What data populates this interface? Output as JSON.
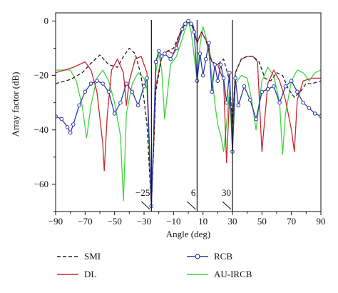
{
  "chart_data": {
    "type": "line",
    "xlabel": "Angle (deg)",
    "ylabel": "Array factor (dB)",
    "xlim": [
      -90,
      90
    ],
    "ylim": [
      -70,
      3
    ],
    "xticks": [
      -90,
      -70,
      -50,
      -30,
      -10,
      10,
      30,
      50,
      70,
      90
    ],
    "yticks": [
      0,
      -20,
      -40,
      -60
    ],
    "grid": false,
    "legend_position": "bottom",
    "annotations": [
      {
        "x": -25,
        "label": "−25"
      },
      {
        "x": 6,
        "label": "6"
      },
      {
        "x": 30,
        "label": "30"
      }
    ],
    "series": [
      {
        "name": "SMI",
        "color": "#222222",
        "style": "dashed",
        "x": [
          -90,
          -80,
          -72,
          -66,
          -60,
          -54,
          -48,
          -44,
          -40,
          -36,
          -32,
          -28,
          -25,
          -22,
          -18,
          -14,
          -10,
          -6,
          -3,
          0,
          3,
          6,
          9,
          12,
          16,
          20,
          24,
          28,
          30,
          32,
          36,
          40,
          44,
          48,
          52,
          56,
          60,
          64,
          68,
          72,
          76,
          80,
          84,
          90
        ],
        "y": [
          -23,
          -21.5,
          -19,
          -15.5,
          -12.5,
          -16,
          -17,
          -13,
          -10,
          -12,
          -20,
          -38,
          -68,
          -26,
          -13,
          -11,
          -10,
          -5,
          -1.5,
          0,
          -1.5,
          -8,
          -4,
          -7,
          -15,
          -16,
          -14,
          -22,
          -38,
          -19,
          -14,
          -13,
          -13,
          -15,
          -21,
          -22,
          -19,
          -20,
          -25,
          -28,
          -26,
          -23,
          -23,
          -22
        ]
      },
      {
        "name": "DL",
        "color": "#c8282c",
        "style": "solid",
        "x": [
          -90,
          -84,
          -78,
          -74,
          -70,
          -66,
          -62,
          -58,
          -57,
          -55,
          -52,
          -48,
          -44,
          -42,
          -40,
          -36,
          -32,
          -28,
          -25,
          -22,
          -18,
          -14,
          -10,
          -6,
          -3,
          0,
          3,
          6,
          9,
          12,
          16,
          20,
          24,
          26,
          28,
          30,
          32,
          36,
          40,
          44,
          47,
          50,
          54,
          58,
          62,
          66,
          70,
          72,
          74,
          78,
          84,
          90
        ],
        "y": [
          -19,
          -18,
          -17,
          -16,
          -15,
          -18,
          -26,
          -45,
          -55,
          -35,
          -18,
          -14,
          -19,
          -31,
          -22,
          -14,
          -13,
          -19,
          -68,
          -24,
          -13,
          -11,
          -12,
          -5,
          -1,
          0,
          -1,
          -8,
          -4,
          -7,
          -15,
          -16,
          -22,
          -52,
          -28,
          -38,
          -19,
          -14,
          -13,
          -13,
          -15,
          -48,
          -23,
          -18,
          -22,
          -29,
          -40,
          -48,
          -29,
          -22,
          -21,
          -21
        ]
      },
      {
        "name": "RCB",
        "color": "#2a3aa8",
        "style": "marker",
        "x": [
          -90,
          -86,
          -82,
          -80,
          -78,
          -74,
          -70,
          -66,
          -62,
          -58,
          -54,
          -50,
          -46,
          -42,
          -38,
          -34,
          -30,
          -28,
          -25,
          -22,
          -20,
          -18,
          -16,
          -12,
          -8,
          -4,
          -2,
          0,
          2,
          4,
          6,
          8,
          10,
          12,
          14,
          16,
          18,
          20,
          22,
          24,
          26,
          28,
          30,
          32,
          34,
          38,
          42,
          46,
          50,
          54,
          58,
          62,
          66,
          70,
          74,
          78,
          82,
          86,
          90
        ],
        "y": [
          -35,
          -36,
          -39,
          -41,
          -38,
          -31,
          -26,
          -23,
          -22,
          -23,
          -26,
          -34,
          -30,
          -23,
          -26,
          -31,
          -24,
          -21,
          -68,
          -15,
          -11,
          -13,
          -12,
          -14,
          -10,
          -3,
          -1,
          0,
          -1,
          -4,
          -22,
          -12,
          -20,
          -14,
          -8,
          -26,
          -16,
          -22,
          -16,
          -21,
          -30,
          -19,
          -48,
          -21,
          -31,
          -24,
          -29,
          -36,
          -26,
          -25,
          -24,
          -30,
          -24,
          -22,
          -26,
          -30,
          -32,
          -34,
          -35
        ]
      },
      {
        "name": "AU-IRCB",
        "color": "#3fd63f",
        "style": "solid",
        "x": [
          -90,
          -84,
          -80,
          -76,
          -72,
          -69,
          -66,
          -62,
          -58,
          -54,
          -50,
          -46,
          -44,
          -42,
          -38,
          -34,
          -30,
          -28,
          -25,
          -22,
          -20,
          -18,
          -16,
          -14,
          -12,
          -8,
          -5,
          -2,
          0,
          2,
          4,
          6,
          8,
          10,
          12,
          14,
          16,
          18,
          20,
          22,
          24,
          26,
          28,
          30,
          32,
          36,
          40,
          43,
          46,
          50,
          54,
          58,
          62,
          64,
          66,
          70,
          74,
          78,
          82,
          86,
          90
        ],
        "y": [
          -18,
          -18,
          -18,
          -22,
          -31,
          -43,
          -31,
          -21,
          -18,
          -22,
          -30,
          -42,
          -66,
          -34,
          -23,
          -19,
          -21,
          -25,
          -68,
          -19,
          -12,
          -18,
          -36,
          -26,
          -16,
          -13,
          -8,
          -3,
          0,
          -4,
          -13,
          -22,
          -9,
          -2,
          -6,
          -12,
          -20,
          -30,
          -38,
          -42,
          -48,
          -38,
          -25,
          -48,
          -23,
          -20,
          -21,
          -29,
          -40,
          -22,
          -17,
          -20,
          -30,
          -49,
          -34,
          -22,
          -18,
          -19,
          -22,
          -19,
          -18
        ]
      }
    ]
  }
}
